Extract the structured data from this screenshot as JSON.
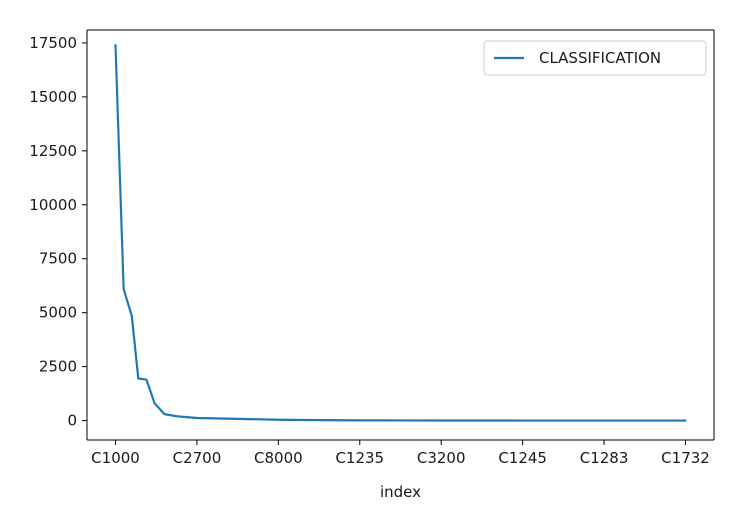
{
  "chart_data": {
    "type": "line",
    "title": "",
    "xlabel": "index",
    "ylabel": "",
    "categories": [
      "C1000",
      "C2700",
      "C8000",
      "C1235",
      "C3200",
      "C1245",
      "C1283",
      "C1732"
    ],
    "ylim": [
      -900,
      18100
    ],
    "yticks": [
      0,
      2500,
      5000,
      7500,
      10000,
      12500,
      15000,
      17500
    ],
    "ytick_labels": [
      "0",
      "2500",
      "5000",
      "7500",
      "10000",
      "12500",
      "15000",
      "17500"
    ],
    "grid": false,
    "legend": "top-right",
    "series": [
      {
        "name": "CLASSIFICATION",
        "color": "#1f77b4",
        "x": [
          0,
          0.1,
          0.2,
          0.28,
          0.38,
          0.48,
          0.6,
          0.75,
          1.0,
          1.5,
          2.0,
          2.5,
          3.0,
          3.5,
          4.0,
          4.5,
          5.0,
          5.5,
          6.0,
          6.5,
          7.0
        ],
        "values": [
          17400,
          6100,
          4850,
          1950,
          1900,
          800,
          300,
          200,
          120,
          80,
          40,
          20,
          10,
          6,
          4,
          3,
          2,
          1,
          1,
          1,
          1
        ]
      }
    ]
  }
}
